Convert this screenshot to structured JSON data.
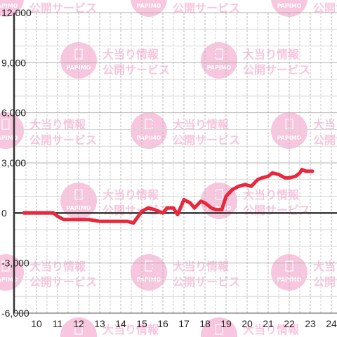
{
  "chart_data": {
    "type": "line",
    "title": "",
    "xlabel": "",
    "ylabel": "",
    "xlim": [
      9.4,
      24.5
    ],
    "ylim": [
      -6000,
      12000
    ],
    "x_ticks": [
      10,
      11,
      12,
      13,
      14,
      15,
      16,
      17,
      18,
      19,
      20,
      21,
      22,
      23,
      24
    ],
    "x_tick_labels": [
      "10",
      "11",
      "12",
      "13",
      "14",
      "15",
      "16",
      "17",
      "18",
      "19",
      "20",
      "21",
      "22",
      "23",
      "24"
    ],
    "y_ticks": [
      12000,
      9000,
      6000,
      3000,
      0,
      -3000,
      -6000
    ],
    "y_tick_labels": [
      "12,000",
      "9,000",
      "6,000",
      "3,000",
      "0",
      "-3,000",
      "-6,000"
    ],
    "grid": true,
    "series": [
      {
        "color": "#e8283c",
        "x": [
          9.4,
          10.5,
          10.8,
          11.0,
          11.3,
          12.0,
          12.5,
          13.0,
          13.5,
          14.0,
          14.3,
          14.6,
          15.0,
          15.3,
          15.6,
          16.0,
          16.2,
          16.5,
          16.7,
          17.0,
          17.3,
          17.5,
          17.8,
          18.0,
          18.3,
          18.5,
          18.8,
          19.0,
          19.3,
          19.6,
          19.9,
          20.2,
          20.5,
          20.7,
          21.0,
          21.2,
          21.5,
          21.8,
          22.0,
          22.3,
          22.5,
          22.6,
          22.8,
          23.0,
          23.1
        ],
        "values": [
          0,
          0,
          0,
          -200,
          -400,
          -400,
          -400,
          -500,
          -500,
          -500,
          -500,
          -600,
          100,
          300,
          200,
          0,
          300,
          300,
          -100,
          800,
          600,
          300,
          700,
          600,
          300,
          200,
          200,
          1000,
          1400,
          1600,
          1700,
          1600,
          2000,
          2100,
          2200,
          2400,
          2300,
          2100,
          2100,
          2200,
          2400,
          2600,
          2500,
          2500,
          2500
        ]
      }
    ]
  },
  "watermark": {
    "line1": "大当り情報",
    "line2": "公開サービス",
    "badge": "PAPIMO",
    "color": "#f6b3d3"
  }
}
